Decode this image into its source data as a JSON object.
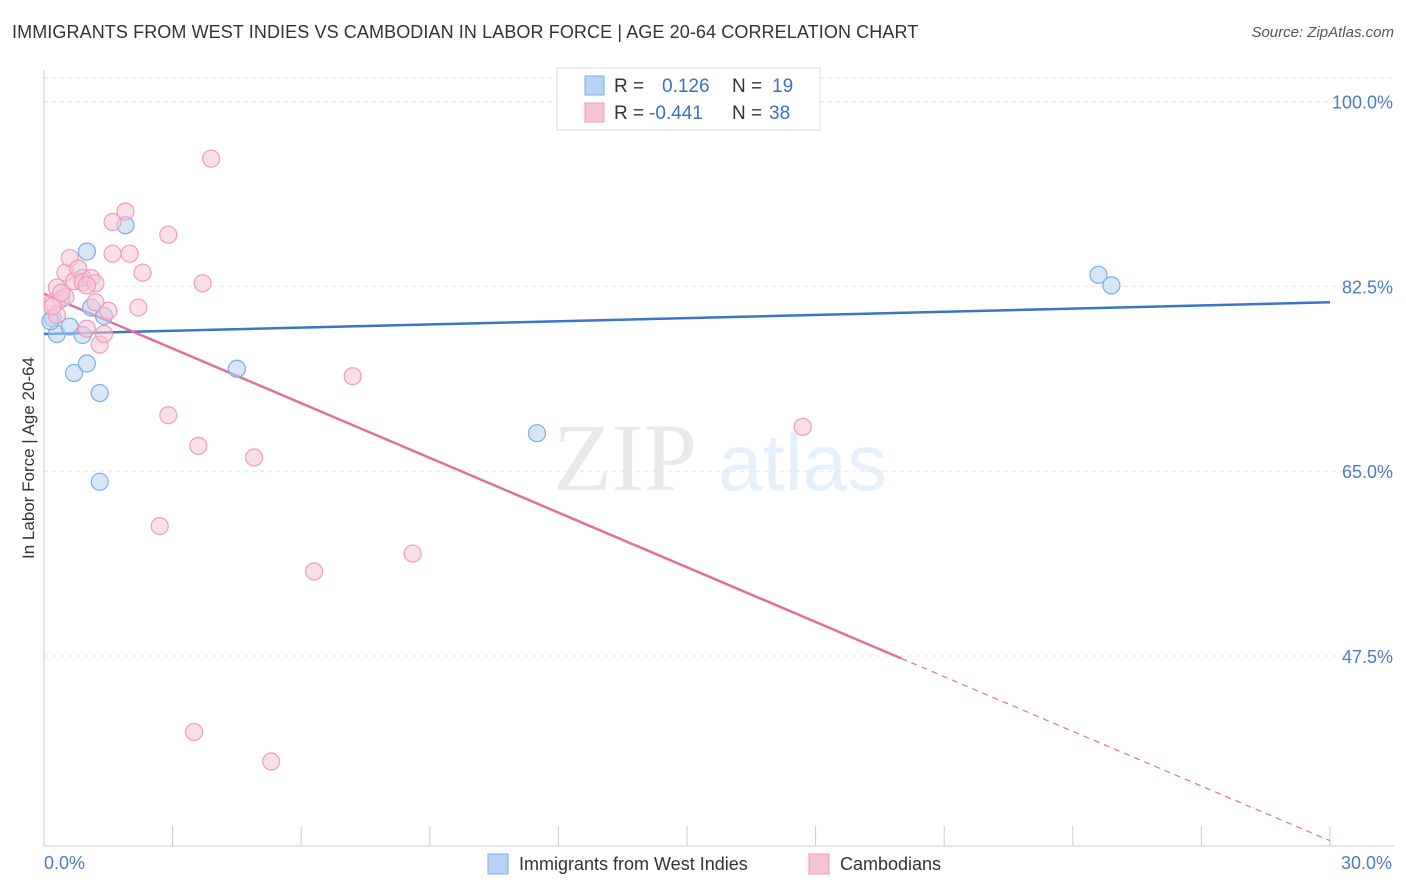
{
  "title": "IMMIGRANTS FROM WEST INDIES VS CAMBODIAN IN LABOR FORCE | AGE 20-64 CORRELATION CHART",
  "source": "Source: ZipAtlas.com",
  "watermark": {
    "zip": "ZIP",
    "atlas": "atlas"
  },
  "chart_data": {
    "type": "scatter",
    "ylabel": "In Labor Force | Age 20-64",
    "xlim": [
      0,
      30
    ],
    "ylim": [
      29.5,
      103
    ],
    "x_ticks_labels": [
      "0.0%",
      "30.0%"
    ],
    "y_ticks": [
      47.5,
      65.0,
      82.5,
      100.0
    ],
    "y_ticks_labels": [
      "47.5%",
      "65.0%",
      "82.5%",
      "100.0%"
    ],
    "legend": {
      "r_label": "R =",
      "n_label": "N =",
      "items": [
        {
          "r": "0.126",
          "n": "19"
        },
        {
          "r": "-0.441",
          "n": "38"
        }
      ]
    },
    "series": [
      {
        "name": "Immigrants from West Indies",
        "color": "#7aaee8",
        "fill": "#b8d3f3",
        "line_color": "#3a75c9",
        "trend": {
          "x0": 0,
          "y0": 78.0,
          "x1": 30,
          "y1": 81.0,
          "solid_to": 30
        },
        "points": [
          {
            "x": 0.2,
            "y": 79.5
          },
          {
            "x": 0.3,
            "y": 78.0
          },
          {
            "x": 0.4,
            "y": 81.3
          },
          {
            "x": 0.6,
            "y": 78.7
          },
          {
            "x": 0.7,
            "y": 74.3
          },
          {
            "x": 0.9,
            "y": 83.3
          },
          {
            "x": 0.9,
            "y": 77.9
          },
          {
            "x": 1.0,
            "y": 75.2
          },
          {
            "x": 1.1,
            "y": 80.5
          },
          {
            "x": 1.0,
            "y": 85.8
          },
          {
            "x": 1.3,
            "y": 72.4
          },
          {
            "x": 1.4,
            "y": 79.7
          },
          {
            "x": 1.9,
            "y": 88.3
          },
          {
            "x": 1.3,
            "y": 64.0
          },
          {
            "x": 4.5,
            "y": 74.7
          },
          {
            "x": 11.5,
            "y": 68.6
          },
          {
            "x": 24.6,
            "y": 83.6
          },
          {
            "x": 24.9,
            "y": 82.6
          },
          {
            "x": 0.15,
            "y": 79.2
          }
        ]
      },
      {
        "name": "Cambodians",
        "color": "#f29ab8",
        "fill": "#f7c4d5",
        "line_color": "#e07099",
        "trend": {
          "x0": 0,
          "y0": 81.8,
          "x1": 30,
          "y1": 30.0,
          "solid_to": 20.0
        },
        "points": [
          {
            "x": 0.2,
            "y": 81.0
          },
          {
            "x": 0.3,
            "y": 82.4
          },
          {
            "x": 0.3,
            "y": 79.8
          },
          {
            "x": 0.5,
            "y": 81.5
          },
          {
            "x": 0.5,
            "y": 83.8
          },
          {
            "x": 0.6,
            "y": 85.2
          },
          {
            "x": 0.7,
            "y": 83.0
          },
          {
            "x": 0.8,
            "y": 84.2
          },
          {
            "x": 0.9,
            "y": 82.9
          },
          {
            "x": 1.0,
            "y": 78.5
          },
          {
            "x": 1.1,
            "y": 83.3
          },
          {
            "x": 1.2,
            "y": 81.0
          },
          {
            "x": 1.2,
            "y": 82.8
          },
          {
            "x": 1.3,
            "y": 77.0
          },
          {
            "x": 1.5,
            "y": 80.2
          },
          {
            "x": 1.4,
            "y": 78.0
          },
          {
            "x": 1.6,
            "y": 88.6
          },
          {
            "x": 1.6,
            "y": 85.6
          },
          {
            "x": 1.9,
            "y": 89.6
          },
          {
            "x": 2.0,
            "y": 85.6
          },
          {
            "x": 2.3,
            "y": 83.8
          },
          {
            "x": 2.2,
            "y": 80.5
          },
          {
            "x": 2.9,
            "y": 87.4
          },
          {
            "x": 3.9,
            "y": 94.6
          },
          {
            "x": 3.7,
            "y": 82.8
          },
          {
            "x": 2.9,
            "y": 70.3
          },
          {
            "x": 3.6,
            "y": 67.4
          },
          {
            "x": 4.9,
            "y": 66.3
          },
          {
            "x": 2.7,
            "y": 59.8
          },
          {
            "x": 7.2,
            "y": 74.0
          },
          {
            "x": 8.6,
            "y": 57.2
          },
          {
            "x": 6.3,
            "y": 55.5
          },
          {
            "x": 3.5,
            "y": 40.3
          },
          {
            "x": 5.3,
            "y": 37.5
          },
          {
            "x": 17.7,
            "y": 69.2
          },
          {
            "x": 0.2,
            "y": 80.6
          },
          {
            "x": 1.0,
            "y": 82.6
          },
          {
            "x": 0.4,
            "y": 81.9
          }
        ]
      }
    ]
  }
}
